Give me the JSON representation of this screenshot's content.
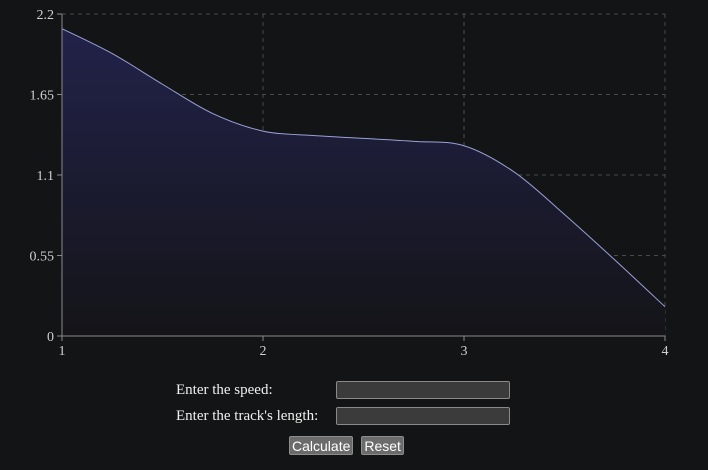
{
  "chart_data": {
    "type": "area",
    "x": [
      1,
      1.25,
      1.5,
      1.75,
      2,
      2.25,
      2.5,
      2.75,
      3,
      3.25,
      3.5,
      3.75,
      4
    ],
    "values": [
      2.1,
      1.93,
      1.72,
      1.52,
      1.4,
      1.37,
      1.35,
      1.33,
      1.3,
      1.12,
      0.83,
      0.52,
      0.2
    ],
    "x_ticks": [
      "1",
      "2",
      "3",
      "4"
    ],
    "y_ticks": [
      "0",
      "0.55",
      "1.1",
      "1.65",
      "2.2"
    ],
    "xlim": [
      1,
      4
    ],
    "ylim": [
      0,
      2.2
    ],
    "grid": true,
    "title": "",
    "xlabel": "",
    "ylabel": "",
    "colors": {
      "line": "#9aa0d8",
      "fill_top": "#22224a",
      "fill_bottom": "#141418",
      "grid": "#4a4a4a",
      "axis": "#8a8a8a"
    }
  },
  "form": {
    "speed_label": "Enter the speed:",
    "speed_value": "",
    "length_label": "Enter the track's length:",
    "length_value": ""
  },
  "buttons": {
    "calculate_label": "Calculate",
    "reset_label": "Reset"
  }
}
